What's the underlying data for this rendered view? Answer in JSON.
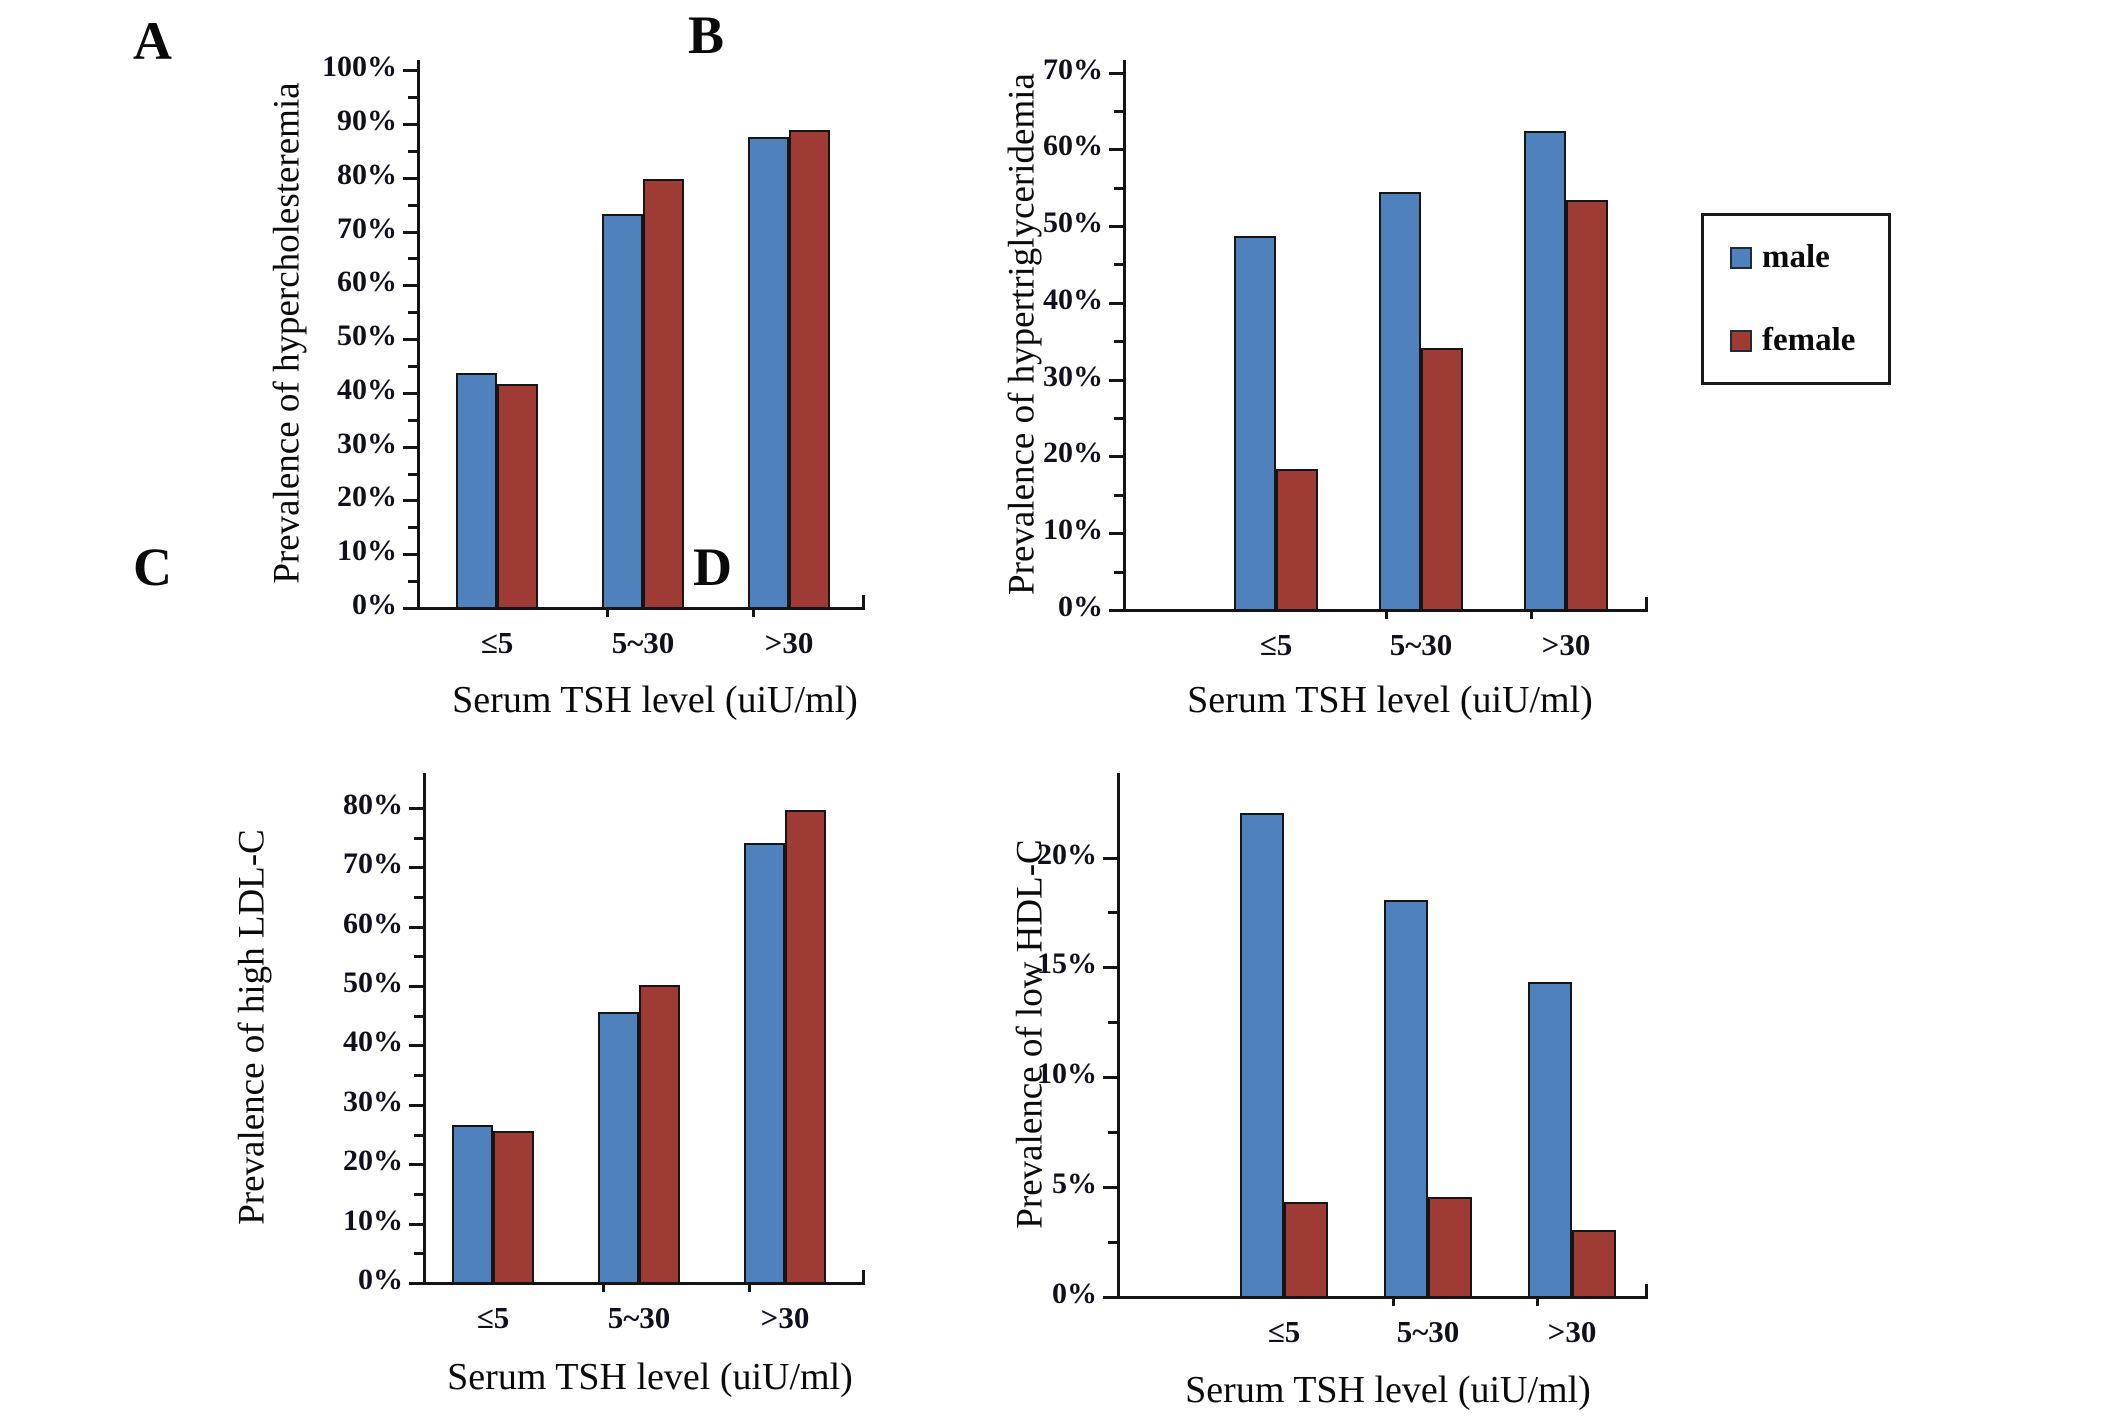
{
  "figure": {
    "background": "#ffffff",
    "x_axis_title": "Serum TSH level (uiU/ml)",
    "categories": [
      "≤5",
      "5~30",
      ">30"
    ]
  },
  "legend": {
    "items": [
      {
        "label": "male",
        "color": "#4F81BD"
      },
      {
        "label": "female",
        "color": "#9E3B35"
      }
    ]
  },
  "colors": {
    "male": "#4F81BD",
    "female": "#9E3B35",
    "bar_border": "#151515",
    "axis": "#141414"
  },
  "chart_data": [
    {
      "id": "A",
      "panel_letter": "A",
      "type": "bar",
      "y_title": "Prevalence of hypercholesteremia",
      "x_title": "Serum TSH level (uiU/ml)",
      "categories": [
        "≤5",
        "5~30",
        ">30"
      ],
      "series": [
        {
          "name": "male",
          "color": "#4F81BD",
          "values": [
            43.5,
            73.0,
            87.3
          ]
        },
        {
          "name": "female",
          "color": "#9E3B35",
          "values": [
            41.5,
            79.6,
            88.6
          ]
        }
      ],
      "ylim": [
        0,
        101.7
      ],
      "tick_step": 10,
      "tick_max": 100,
      "minor_step": 5,
      "tick_suffix": "%",
      "grid": false,
      "legend_position": "right-of-panel-B"
    },
    {
      "id": "B",
      "panel_letter": "B",
      "type": "bar",
      "y_title": "Prevalence of hypertriglyceridemia",
      "x_title": "Serum TSH level (uiU/ml)",
      "categories": [
        "≤5",
        "5~30",
        ">30"
      ],
      "series": [
        {
          "name": "male",
          "color": "#4F81BD",
          "values": [
            48.6,
            54.3,
            62.2
          ]
        },
        {
          "name": "female",
          "color": "#9E3B35",
          "values": [
            18.2,
            34.0,
            53.3
          ]
        }
      ],
      "ylim": [
        0,
        71.5
      ],
      "tick_step": 10,
      "tick_max": 70,
      "minor_step": 5,
      "tick_suffix": "%",
      "grid": false
    },
    {
      "id": "C",
      "panel_letter": "C",
      "type": "bar",
      "y_title": "Prevalence of high LDL-C",
      "x_title": "Serum TSH level (uiU/ml)",
      "categories": [
        "≤5",
        "5~30",
        ">30"
      ],
      "series": [
        {
          "name": "male",
          "color": "#4F81BD",
          "values": [
            26.4,
            45.4,
            73.9
          ]
        },
        {
          "name": "female",
          "color": "#9E3B35",
          "values": [
            25.4,
            50.0,
            79.5
          ]
        }
      ],
      "ylim": [
        0,
        85.7
      ],
      "tick_step": 10,
      "tick_max": 80,
      "minor_step": 5,
      "tick_suffix": "%",
      "grid": false
    },
    {
      "id": "D",
      "panel_letter": "D",
      "type": "bar",
      "y_title": "Prevalence of low HDL-C",
      "x_title": "Serum TSH level (uiU/ml)",
      "categories": [
        "≤5",
        "5~30",
        ">30"
      ],
      "series": [
        {
          "name": "male",
          "color": "#4F81BD",
          "values": [
            22.0,
            18.0,
            14.3
          ]
        },
        {
          "name": "female",
          "color": "#9E3B35",
          "values": [
            4.3,
            4.5,
            3.0
          ]
        }
      ],
      "ylim": [
        0,
        23.8
      ],
      "tick_step": 5,
      "tick_max": 20,
      "minor_step": 2.5,
      "tick_suffix": "%",
      "grid": false
    }
  ]
}
